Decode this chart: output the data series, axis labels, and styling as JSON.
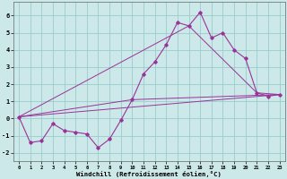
{
  "xlabel": "Windchill (Refroidissement éolien,°C)",
  "bg_color": "#cce8e8",
  "grid_color": "#99cccc",
  "line_color": "#993399",
  "x_all": [
    0,
    1,
    2,
    3,
    4,
    5,
    6,
    7,
    8,
    9,
    10,
    11,
    12,
    13,
    14,
    15,
    16,
    17,
    18,
    19,
    20,
    21,
    22,
    23
  ],
  "series1": [
    0.1,
    -1.4,
    -1.3,
    -0.3,
    -0.7,
    -0.8,
    -0.9,
    -1.7,
    -1.2,
    -0.1,
    1.1,
    2.6,
    3.3,
    4.3,
    5.6,
    5.4,
    6.2,
    4.7,
    5.0,
    4.0,
    3.5,
    1.5,
    1.3,
    1.4
  ],
  "line1_x": [
    0,
    23
  ],
  "line1_y": [
    0.1,
    1.4
  ],
  "line2_x": [
    0,
    10,
    23
  ],
  "line2_y": [
    0.1,
    1.1,
    1.4
  ],
  "line3_x": [
    0,
    15,
    21,
    23
  ],
  "line3_y": [
    0.1,
    5.4,
    1.5,
    1.4
  ],
  "ylim": [
    -2.5,
    6.8
  ],
  "xlim": [
    -0.5,
    23.5
  ],
  "yticks": [
    -2,
    -1,
    0,
    1,
    2,
    3,
    4,
    5,
    6
  ],
  "xticks": [
    0,
    1,
    2,
    3,
    4,
    5,
    6,
    7,
    8,
    9,
    10,
    11,
    12,
    13,
    14,
    15,
    16,
    17,
    18,
    19,
    20,
    21,
    22,
    23
  ]
}
